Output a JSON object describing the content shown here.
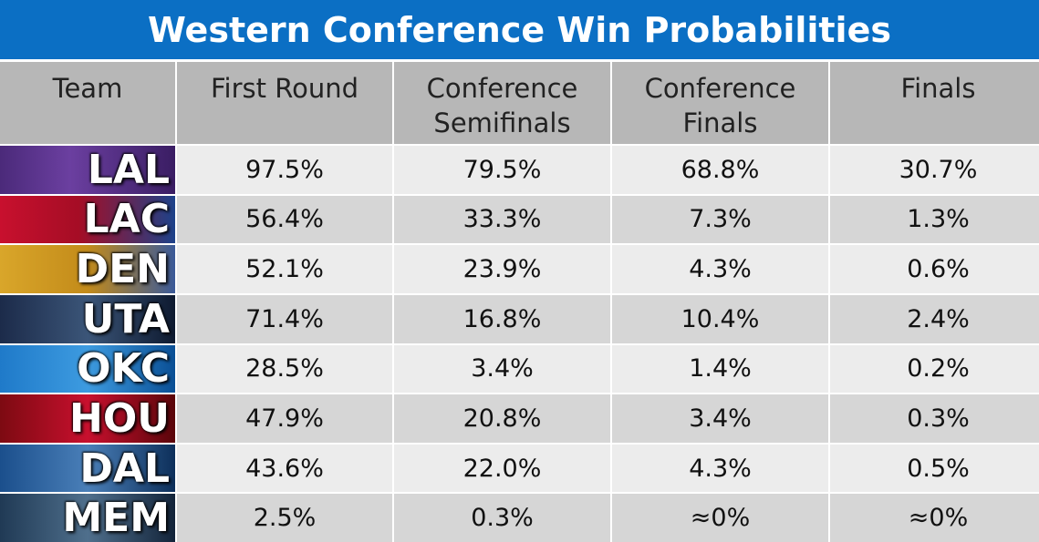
{
  "header": {
    "title": "Western Conference Win Probabilities"
  },
  "table": {
    "columns": [
      "Team",
      "First Round",
      "Conference Semifinals",
      "Conference Finals",
      "Finals"
    ],
    "rows": [
      [
        "LAL",
        "97.5%",
        "79.5%",
        "68.8%",
        "30.7%"
      ],
      [
        "LAC",
        "56.4%",
        "33.3%",
        "7.3%",
        "1.3%"
      ],
      [
        "DEN",
        "52.1%",
        "23.9%",
        "4.3%",
        "0.6%"
      ],
      [
        "UTA",
        "71.4%",
        "16.8%",
        "10.4%",
        "2.4%"
      ],
      [
        "OKC",
        "28.5%",
        "3.4%",
        "1.4%",
        "0.2%"
      ],
      [
        "HOU",
        "47.9%",
        "20.8%",
        "3.4%",
        "0.3%"
      ],
      [
        "DAL",
        "43.6%",
        "22.0%",
        "4.3%",
        "0.5%"
      ],
      [
        "MEM",
        "2.5%",
        "0.3%",
        "≈0%",
        "≈0%"
      ]
    ]
  }
}
